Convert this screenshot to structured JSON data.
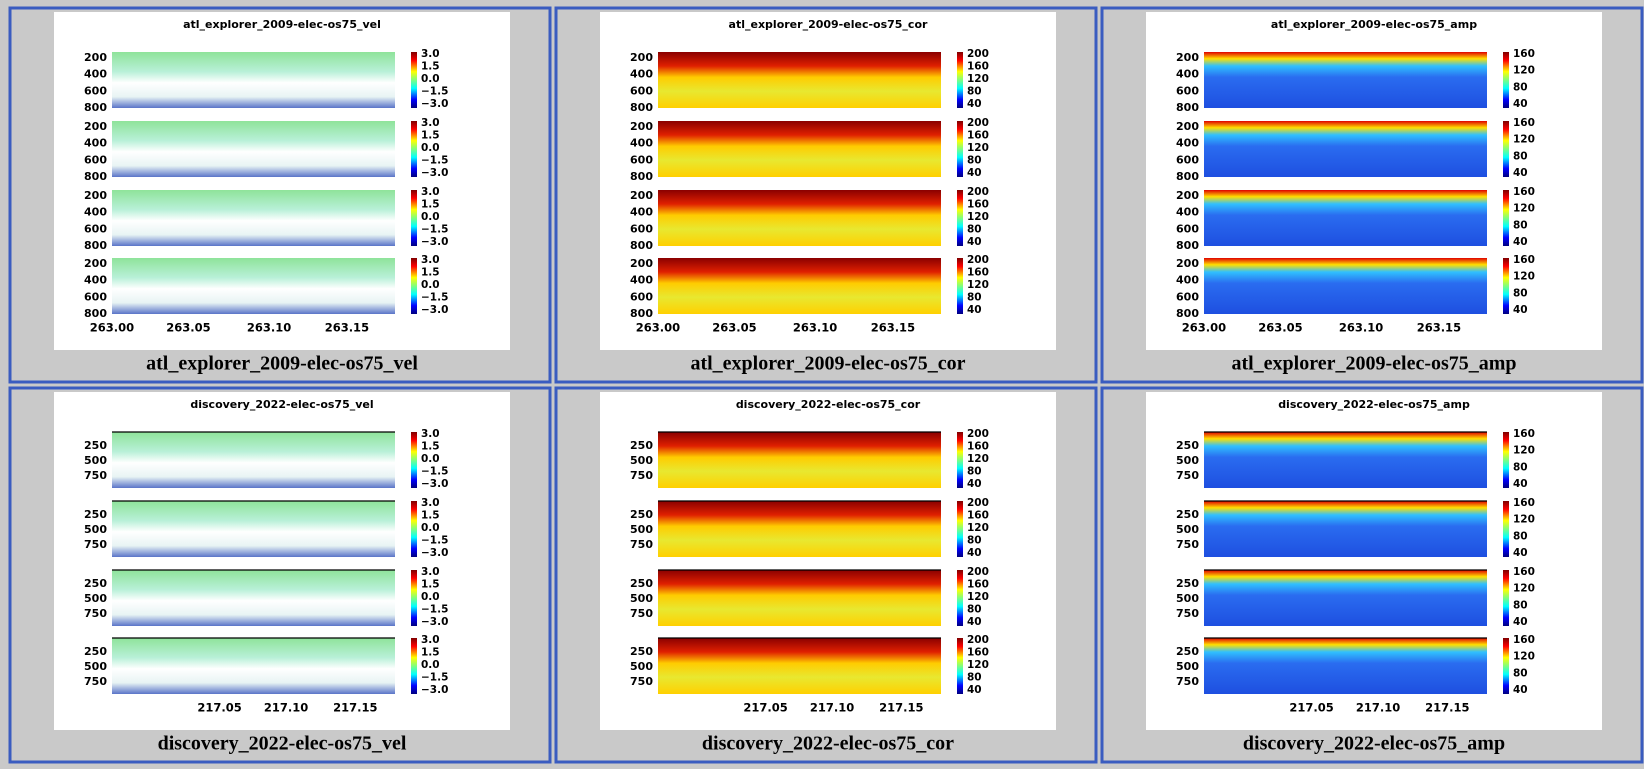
{
  "cells": [
    {
      "title": "atl_explorer_2009-elec-os75_vel",
      "caption": "atl_explorer_2009-elec-os75_vel",
      "kind": "vel",
      "yticks": [
        "200",
        "400",
        "600",
        "800"
      ],
      "colorbar_ticks": [
        "3.0",
        "1.5",
        "0.0",
        "−1.5",
        "−3.0"
      ],
      "xticks": [
        "263.00",
        "263.05",
        "263.10",
        "263.15"
      ]
    },
    {
      "title": "atl_explorer_2009-elec-os75_cor",
      "caption": "atl_explorer_2009-elec-os75_cor",
      "kind": "cor",
      "yticks": [
        "200",
        "400",
        "600",
        "800"
      ],
      "colorbar_ticks": [
        "200",
        "160",
        "120",
        "80",
        "40"
      ],
      "xticks": [
        "263.00",
        "263.05",
        "263.10",
        "263.15"
      ]
    },
    {
      "title": "atl_explorer_2009-elec-os75_amp",
      "caption": "atl_explorer_2009-elec-os75_amp",
      "kind": "amp",
      "yticks": [
        "200",
        "400",
        "600",
        "800"
      ],
      "colorbar_ticks": [
        "160",
        "120",
        "80",
        "40"
      ],
      "xticks": [
        "263.00",
        "263.05",
        "263.10",
        "263.15"
      ]
    },
    {
      "title": "discovery_2022-elec-os75_vel",
      "caption": "discovery_2022-elec-os75_vel",
      "kind": "vel",
      "yticks": [
        "250",
        "500",
        "750"
      ],
      "colorbar_ticks": [
        "3.0",
        "1.5",
        "0.0",
        "−1.5",
        "−3.0"
      ],
      "xticks": [
        "217.05",
        "217.10",
        "217.15"
      ]
    },
    {
      "title": "discovery_2022-elec-os75_cor",
      "caption": "discovery_2022-elec-os75_cor",
      "kind": "cor",
      "yticks": [
        "250",
        "500",
        "750"
      ],
      "colorbar_ticks": [
        "200",
        "160",
        "120",
        "80",
        "40"
      ],
      "xticks": [
        "217.05",
        "217.10",
        "217.15"
      ]
    },
    {
      "title": "discovery_2022-elec-os75_amp",
      "caption": "discovery_2022-elec-os75_amp",
      "kind": "amp",
      "yticks": [
        "250",
        "500",
        "750"
      ],
      "colorbar_ticks": [
        "160",
        "120",
        "80",
        "40"
      ],
      "xticks": [
        "217.05",
        "217.10",
        "217.15"
      ]
    }
  ]
}
